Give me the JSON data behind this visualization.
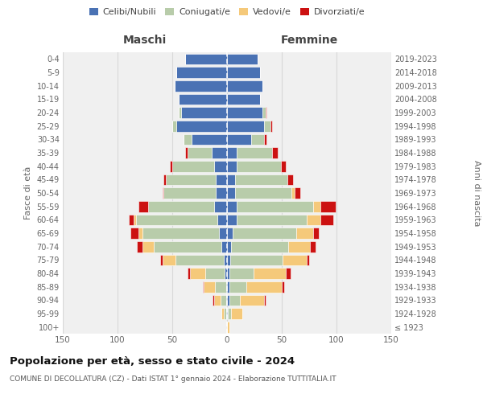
{
  "age_groups": [
    "100+",
    "95-99",
    "90-94",
    "85-89",
    "80-84",
    "75-79",
    "70-74",
    "65-69",
    "60-64",
    "55-59",
    "50-54",
    "45-49",
    "40-44",
    "35-39",
    "30-34",
    "25-29",
    "20-24",
    "15-19",
    "10-14",
    "5-9",
    "0-4"
  ],
  "birth_years": [
    "≤ 1923",
    "1924-1928",
    "1929-1933",
    "1934-1938",
    "1939-1943",
    "1944-1948",
    "1949-1953",
    "1954-1958",
    "1959-1963",
    "1964-1968",
    "1969-1973",
    "1974-1978",
    "1979-1983",
    "1984-1988",
    "1989-1993",
    "1994-1998",
    "1999-2003",
    "2004-2008",
    "2009-2013",
    "2014-2018",
    "2019-2023"
  ],
  "colors": {
    "celibi": "#4a72b4",
    "coniugati": "#b8ccaa",
    "vedovi": "#f5c97a",
    "divorziati": "#cc1111"
  },
  "male": {
    "celibi": [
      0,
      1,
      1,
      1,
      2,
      3,
      5,
      7,
      9,
      12,
      10,
      10,
      12,
      14,
      32,
      46,
      42,
      44,
      48,
      46,
      38
    ],
    "coniugati": [
      0,
      2,
      5,
      10,
      18,
      44,
      62,
      70,
      74,
      60,
      48,
      46,
      38,
      22,
      8,
      4,
      2,
      0,
      0,
      0,
      0
    ],
    "vedovi": [
      0,
      2,
      6,
      10,
      14,
      12,
      10,
      4,
      2,
      0,
      0,
      0,
      0,
      0,
      0,
      0,
      0,
      0,
      0,
      0,
      0
    ],
    "divorziati": [
      0,
      0,
      1,
      1,
      2,
      2,
      5,
      7,
      5,
      9,
      1,
      2,
      2,
      2,
      0,
      0,
      0,
      0,
      0,
      0,
      0
    ]
  },
  "female": {
    "celibi": [
      0,
      1,
      2,
      2,
      2,
      3,
      4,
      5,
      9,
      9,
      7,
      7,
      9,
      9,
      22,
      34,
      32,
      30,
      32,
      30,
      28
    ],
    "coniugati": [
      0,
      3,
      10,
      16,
      22,
      48,
      52,
      58,
      64,
      70,
      52,
      48,
      40,
      32,
      12,
      6,
      3,
      0,
      0,
      0,
      0
    ],
    "vedovi": [
      2,
      10,
      22,
      32,
      30,
      22,
      20,
      16,
      12,
      6,
      3,
      0,
      0,
      0,
      0,
      0,
      0,
      0,
      0,
      0,
      0
    ],
    "divorziati": [
      0,
      0,
      1,
      2,
      4,
      2,
      5,
      5,
      12,
      14,
      5,
      5,
      5,
      5,
      2,
      1,
      1,
      0,
      0,
      0,
      0
    ]
  },
  "xlim": 150,
  "title": "Popolazione per età, sesso e stato civile - 2024",
  "subtitle": "COMUNE DI DECOLLATURA (CZ) - Dati ISTAT 1° gennaio 2024 - Elaborazione TUTTITALIA.IT",
  "xlabel_left": "Maschi",
  "xlabel_right": "Femmine",
  "ylabel_left": "Fasce di età",
  "ylabel_right": "Anni di nascita",
  "legend_labels": [
    "Celibi/Nubili",
    "Coniugati/e",
    "Vedovi/e",
    "Divorziati/e"
  ],
  "bg_color": "#f0f0f0",
  "grid_color": "#d8d8d8"
}
